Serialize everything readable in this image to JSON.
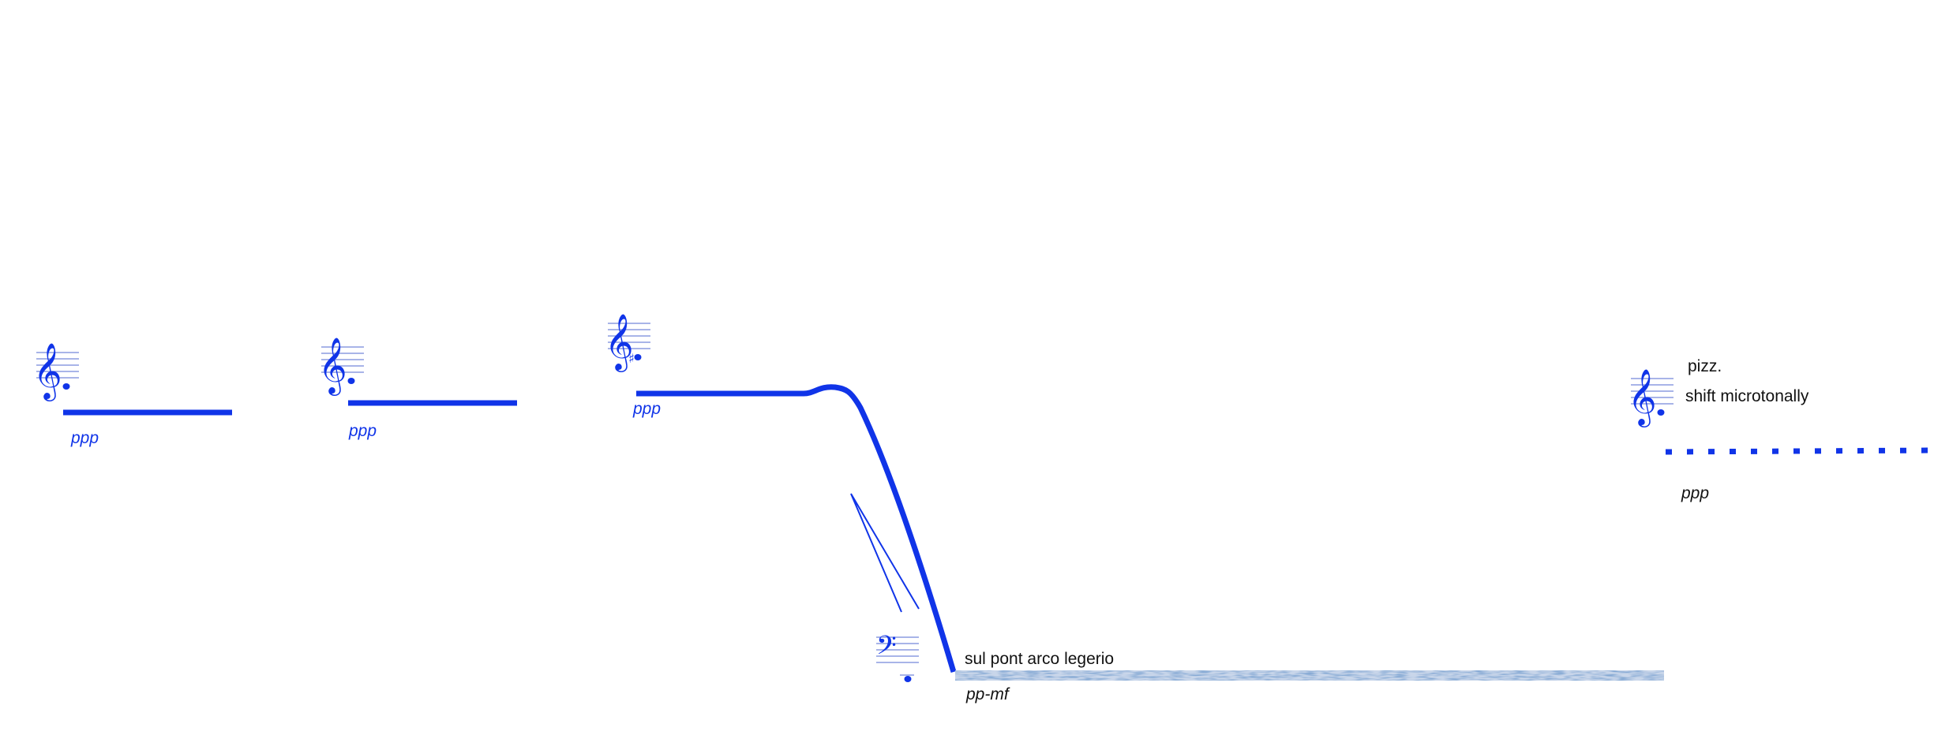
{
  "colors": {
    "ink_blue": "#1034e8",
    "staff_line": "#8c9be0",
    "text_black": "#111111",
    "texture_base": "#3e6aa8",
    "texture_light": "#c9d6ea"
  },
  "clefs": [
    {
      "type": "treble",
      "note": "natural"
    },
    {
      "type": "treble",
      "note": "natural"
    },
    {
      "type": "treble",
      "note": "sharp"
    },
    {
      "type": "bass",
      "note": "natural"
    },
    {
      "type": "treble",
      "note": "natural"
    }
  ],
  "events": [
    {
      "id": "e1",
      "line_style": "solid",
      "dynamic": "ppp"
    },
    {
      "id": "e2",
      "line_style": "solid",
      "dynamic": "ppp"
    },
    {
      "id": "e3",
      "line_style": "glissando-down",
      "dynamic": "ppp",
      "hairpin": "crescendo"
    },
    {
      "id": "e4",
      "line_style": "noise-texture",
      "dynamic": "pp-mf",
      "technique": "sul pont arco legerio"
    },
    {
      "id": "e5",
      "line_style": "dotted",
      "dynamic": "ppp",
      "technique_1": "pizz.",
      "technique_2": "shift microtonally"
    }
  ]
}
